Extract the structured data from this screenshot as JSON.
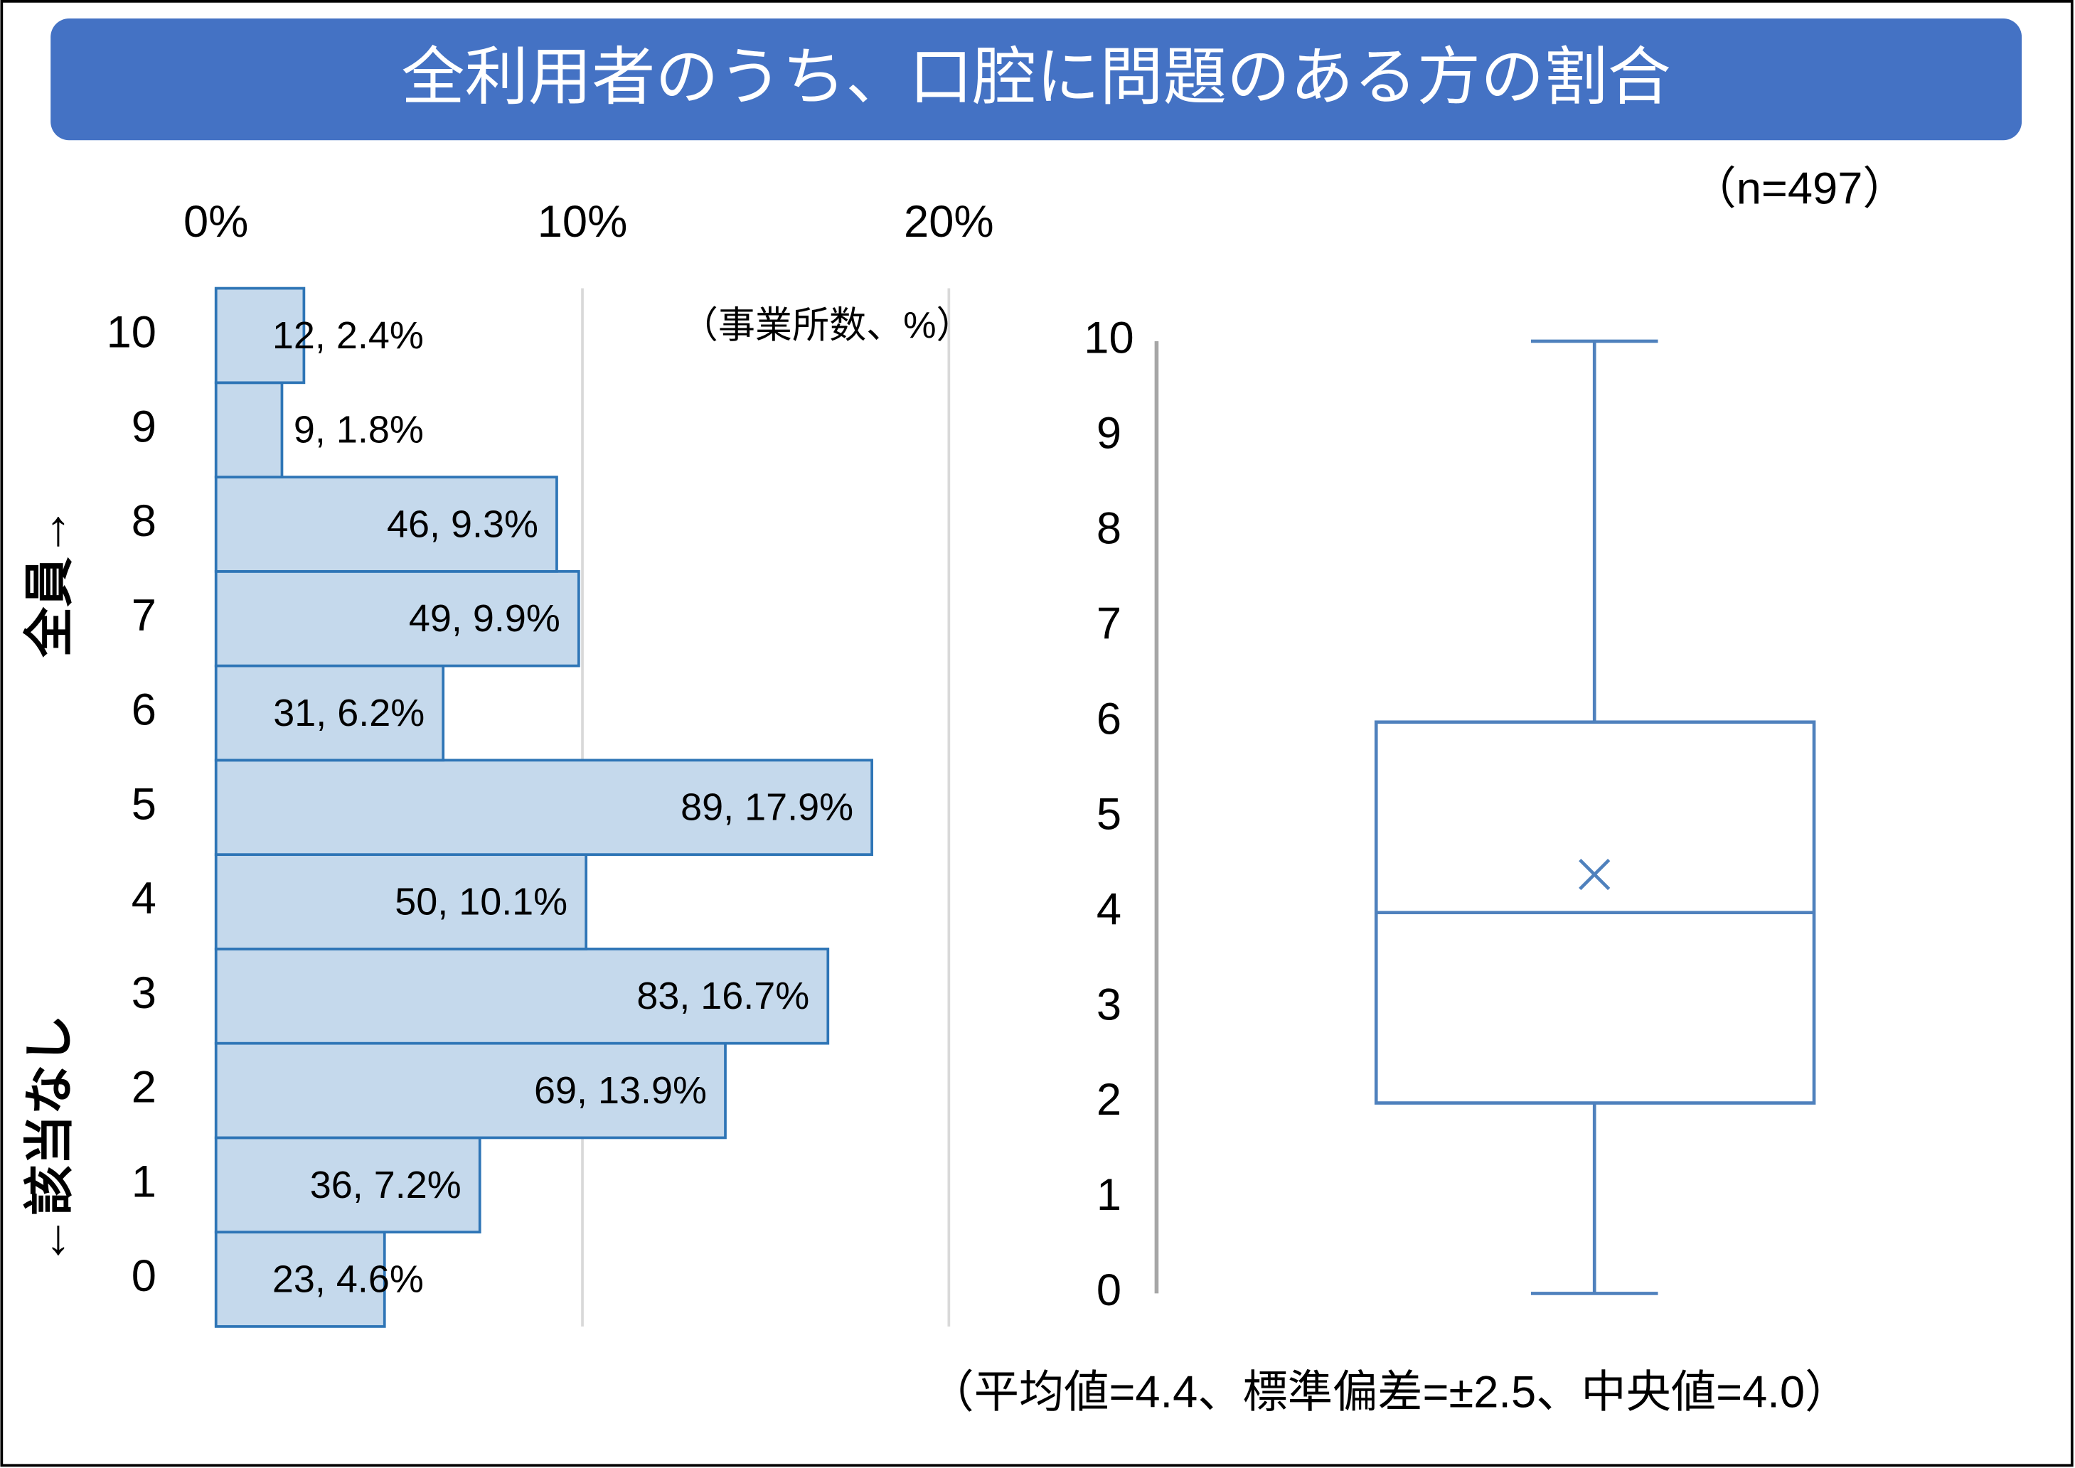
{
  "title": "全利用者のうち、口腔に問題のある方の割合",
  "note": "（n=497）",
  "chart_data": [
    {
      "type": "bar",
      "orientation": "horizontal",
      "unit_label": "（事業所数、%）",
      "side_label_top": "全員→",
      "side_label_bottom": "←該当なし",
      "categories": [
        "0",
        "1",
        "2",
        "3",
        "4",
        "5",
        "6",
        "7",
        "8",
        "9",
        "10"
      ],
      "values": [
        4.6,
        7.2,
        13.9,
        16.7,
        10.1,
        17.9,
        6.2,
        9.9,
        9.3,
        1.8,
        2.4
      ],
      "value_labels": [
        "23, 4.6%",
        "36, 7.2%",
        "69, 13.9%",
        "83, 16.7%",
        "50, 10.1%",
        "89, 17.9%",
        "31, 6.2%",
        "49, 9.9%",
        "46, 9.3%",
        "9, 1.8%",
        "12, 2.4%"
      ],
      "color": "#c5d9ec",
      "edge_color": "#2e75b6",
      "xlim": [
        0,
        20
      ],
      "xticks": [
        {
          "value": 0,
          "label": "0%"
        },
        {
          "value": 10,
          "label": "10%"
        },
        {
          "value": 20,
          "label": "20%"
        }
      ],
      "grid": true
    },
    {
      "type": "box",
      "annotation": "（平均値=4.4、標準偏差=±2.5、中央値=4.0）",
      "min": 0,
      "q1": 2,
      "median": 4,
      "q3": 6,
      "max": 10,
      "mean": 4.4,
      "color": "#4f81bd",
      "ylim": [
        0,
        10
      ],
      "yticks": [
        0,
        1,
        2,
        3,
        4,
        5,
        6,
        7,
        8,
        9,
        10
      ]
    }
  ]
}
